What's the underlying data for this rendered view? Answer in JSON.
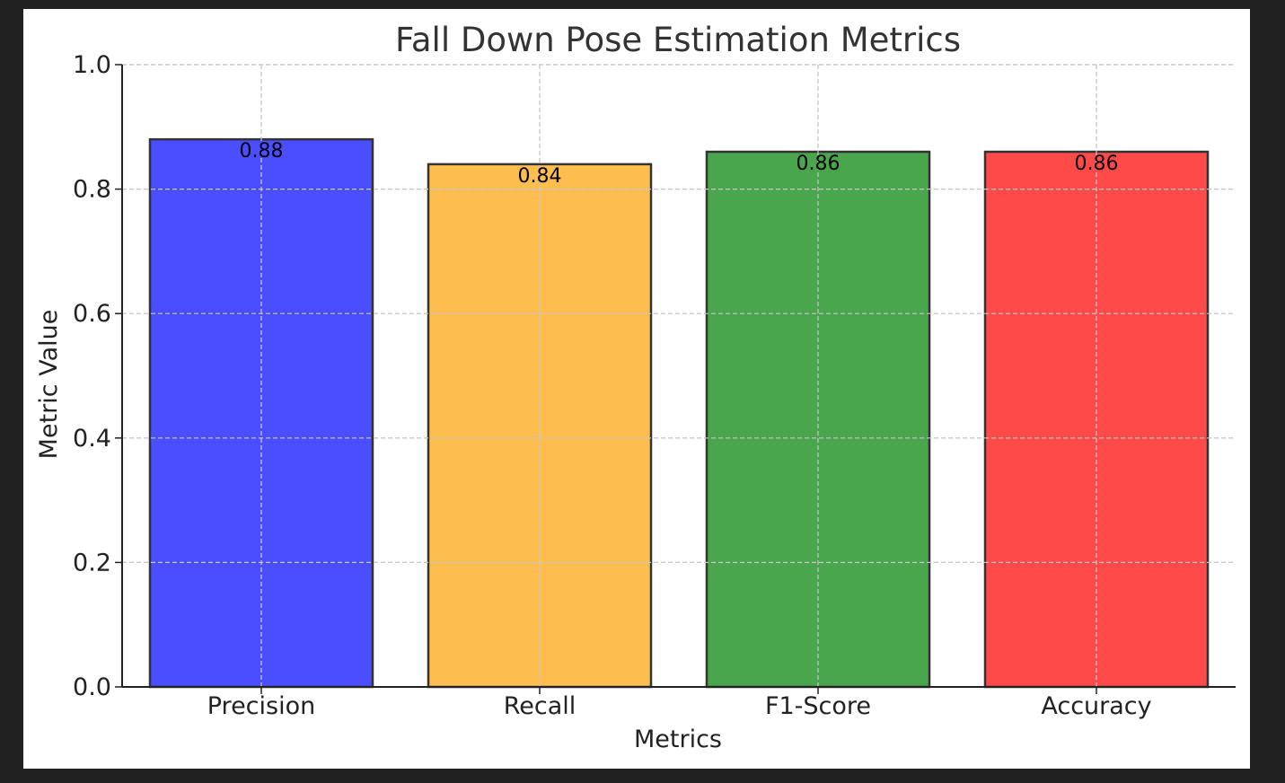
{
  "chart_data": {
    "type": "bar",
    "title": "Fall Down Pose Estimation Metrics",
    "xlabel": "Metrics",
    "ylabel": "Metric Value",
    "categories": [
      "Precision",
      "Recall",
      "F1-Score",
      "Accuracy"
    ],
    "values": [
      0.88,
      0.84,
      0.86,
      0.86
    ],
    "value_labels": [
      "0.88",
      "0.84",
      "0.86",
      "0.86"
    ],
    "colors": [
      "#4a4eff",
      "#fdbe4f",
      "#4aa64d",
      "#ff4a4a"
    ],
    "ylim": [
      0,
      1.0
    ],
    "yticks": [
      0.0,
      0.2,
      0.4,
      0.6,
      0.8,
      1.0
    ],
    "ytick_labels": [
      "0.0",
      "0.2",
      "0.4",
      "0.6",
      "0.8",
      "1.0"
    ],
    "grid": true,
    "legend": "none"
  }
}
